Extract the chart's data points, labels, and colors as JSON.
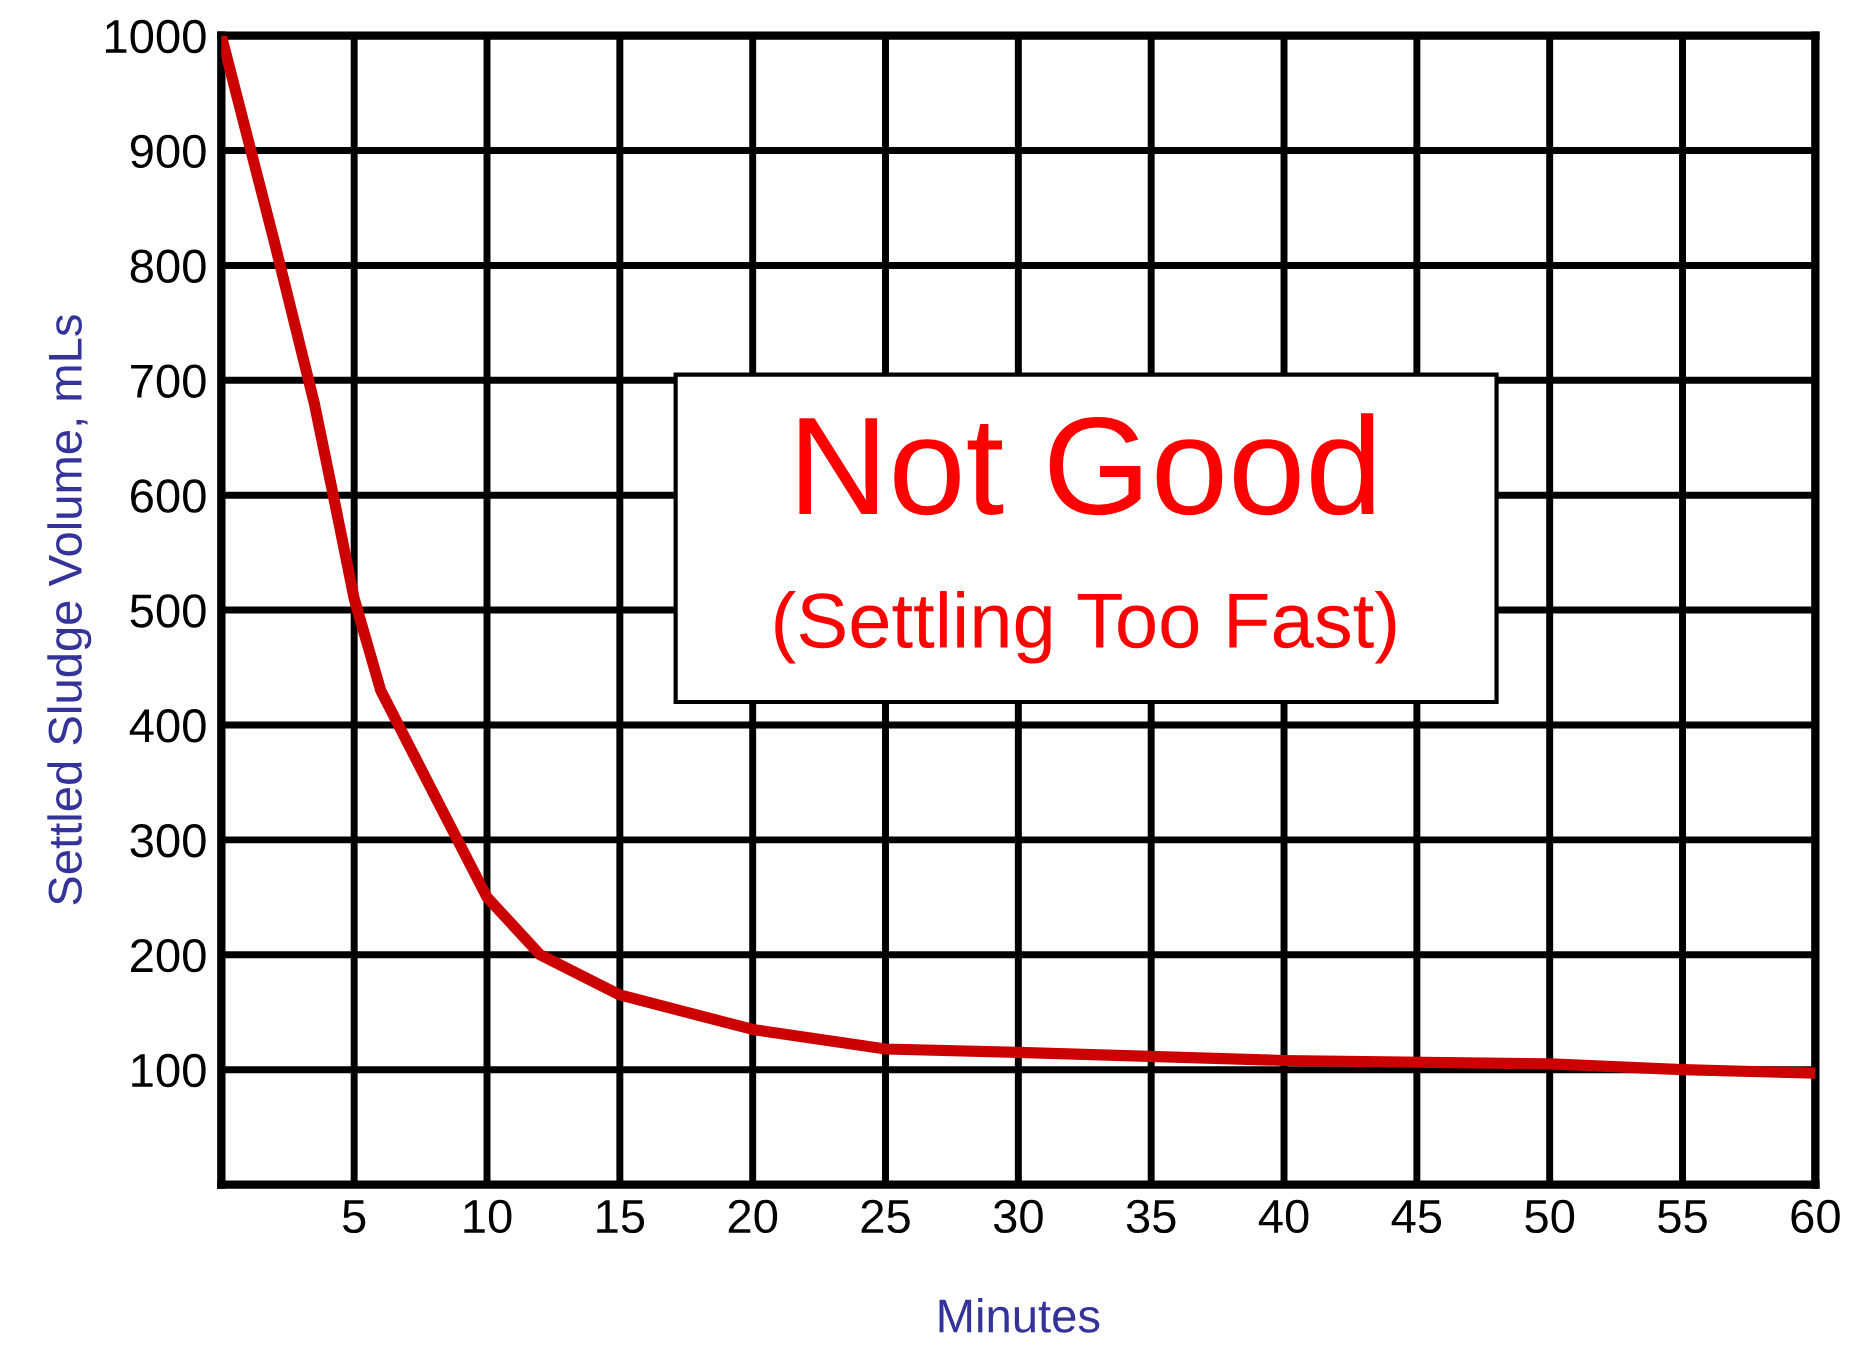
{
  "chart_data": {
    "type": "line",
    "xlabel": "Minutes",
    "ylabel": "Settled Sludge Volume, mLs",
    "annotations": [
      "Not Good",
      "(Settling Too Fast)"
    ],
    "x": [
      0,
      2,
      3.5,
      4.3,
      5,
      6,
      8,
      10,
      12,
      15,
      20,
      25,
      30,
      40,
      50,
      55,
      60
    ],
    "series": [
      {
        "color": "#cc0000",
        "values": [
          1000,
          820,
          680,
          590,
          510,
          430,
          340,
          250,
          200,
          165,
          135,
          118,
          115,
          108,
          105,
          100,
          97
        ]
      }
    ],
    "xlim": [
      0,
      60
    ],
    "xticks": [
      5,
      10,
      15,
      20,
      25,
      30,
      35,
      40,
      45,
      50,
      55,
      60
    ],
    "ylim": [
      0,
      1000
    ],
    "yticks": [
      100,
      200,
      300,
      400,
      500,
      600,
      700,
      800,
      900,
      1000
    ],
    "grid": true,
    "marker": "none",
    "line_style": "solid"
  }
}
